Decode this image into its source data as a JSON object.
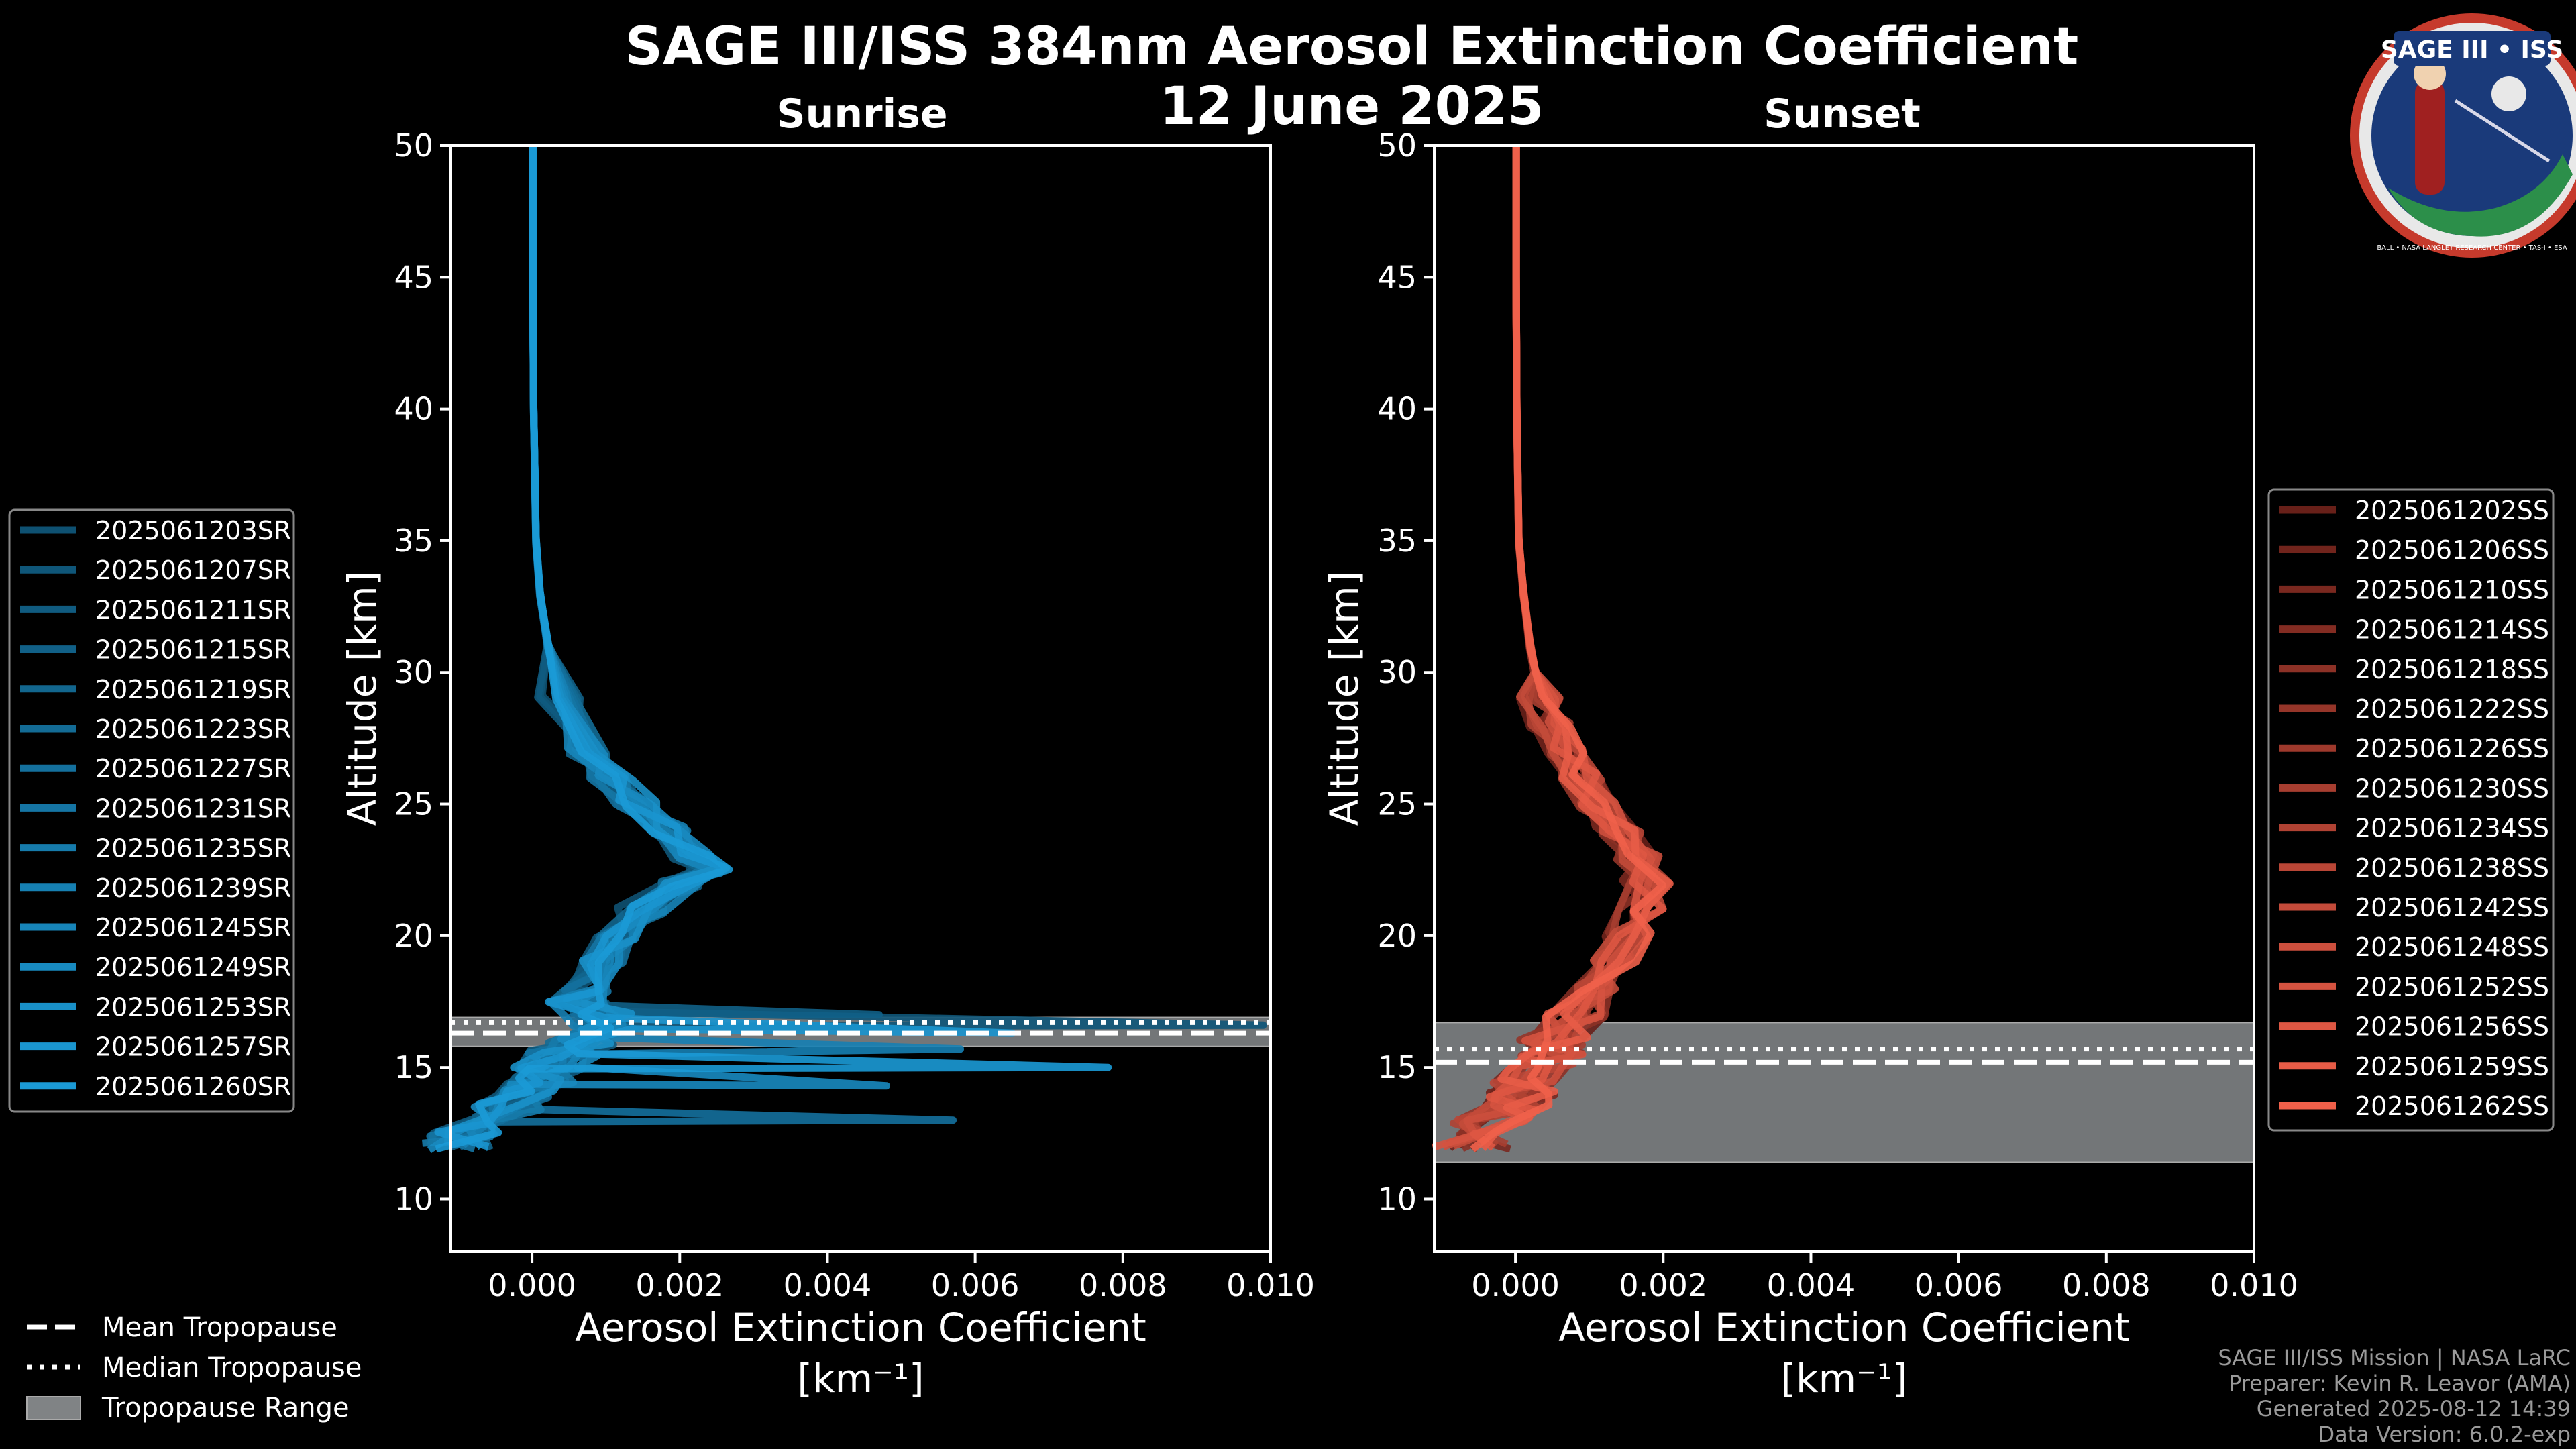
{
  "title": "SAGE III/ISS 384nm Aerosol Extinction Coefficient",
  "date": "12 June 2025",
  "logo": {
    "name": "SAGE III • ISS",
    "ring_text": "BALL • NASA LANGLEY RESEARCH CENTER • TAS-I • ESA"
  },
  "footer": {
    "mission": "SAGE III/ISS Mission | NASA LaRC",
    "preparer": "Preparer: Kevin R. Leavor (AMA)",
    "generated": "Generated 2025-08-12 14:39",
    "version": "Data Version: 6.0.2-exp"
  },
  "tropopause_legend": [
    {
      "label": "Mean Tropopause",
      "style": "dashed"
    },
    {
      "label": "Median Tropopause",
      "style": "dotted"
    },
    {
      "label": "Tropopause Range",
      "style": "patch"
    }
  ],
  "chart_data": [
    {
      "id": "sunrise",
      "type": "line",
      "title": "Sunrise",
      "xlabel": "Aerosol Extinction Coefficient",
      "xunits": "[km⁻¹]",
      "ylabel": "Altitude [km]",
      "xlim": [
        -0.0011,
        0.01
      ],
      "ylim": [
        8,
        50
      ],
      "xticks": [
        0.0,
        0.002,
        0.004,
        0.006,
        0.008,
        0.01
      ],
      "xtick_labels": [
        "0.000",
        "0.002",
        "0.004",
        "0.006",
        "0.008",
        "0.010"
      ],
      "yticks": [
        10,
        15,
        20,
        25,
        30,
        35,
        40,
        45,
        50
      ],
      "ytick_labels": [
        "10",
        "15",
        "20",
        "25",
        "30",
        "35",
        "40",
        "45",
        "50"
      ],
      "color_dark": "#0a3850",
      "color_light": "#1b9ad6",
      "tropopause": {
        "mean": 16.3,
        "median": 16.7,
        "min": 15.8,
        "max": 16.9
      },
      "series_names": [
        "2025061203SR",
        "2025061207SR",
        "2025061211SR",
        "2025061215SR",
        "2025061219SR",
        "2025061223SR",
        "2025061227SR",
        "2025061231SR",
        "2025061235SR",
        "2025061239SR",
        "2025061245SR",
        "2025061249SR",
        "2025061253SR",
        "2025061257SR",
        "2025061260SR"
      ],
      "base_profile": {
        "altitude": [
          50,
          45,
          40,
          35,
          33,
          31,
          29,
          27,
          26,
          25,
          24,
          23,
          22.5,
          22,
          21,
          20,
          19,
          18,
          17.5,
          17,
          16.5,
          16,
          15.5,
          15,
          14.5,
          14,
          13.5,
          13,
          12.5,
          12
        ],
        "extinction": [
          1e-05,
          1e-05,
          2e-05,
          5e-05,
          0.0001,
          0.0002,
          0.00035,
          0.0007,
          0.001,
          0.0013,
          0.0017,
          0.002,
          0.0022,
          0.0019,
          0.0014,
          0.0011,
          0.0009,
          0.0007,
          0.0006,
          0.0008,
          0.0009,
          0.0006,
          0.0004,
          0.0002,
          0.0001,
          0.0,
          -0.0003,
          -0.0005,
          -0.0007,
          -0.0008
        ]
      },
      "highlights": [
        {
          "series": 3,
          "altitude": 17.0,
          "extinction": 0.0047
        },
        {
          "series": 13,
          "altitude": 16.3,
          "extinction": 0.0065
        },
        {
          "series": 9,
          "altitude": 15.7,
          "extinction": 0.0058
        },
        {
          "series": 14,
          "altitude": 15.0,
          "extinction": 0.0078
        },
        {
          "series": 6,
          "altitude": 13.0,
          "extinction": 0.0057
        },
        {
          "series": 11,
          "altitude": 14.3,
          "extinction": 0.0048
        },
        {
          "series": 1,
          "altitude": 16.6,
          "extinction": 0.0099
        }
      ]
    },
    {
      "id": "sunset",
      "type": "line",
      "title": "Sunset",
      "xlabel": "Aerosol Extinction Coefficient",
      "xunits": "[km⁻¹]",
      "ylabel": "Altitude [km]",
      "xlim": [
        -0.0011,
        0.01
      ],
      "ylim": [
        8,
        50
      ],
      "xticks": [
        0.0,
        0.002,
        0.004,
        0.006,
        0.008,
        0.01
      ],
      "xtick_labels": [
        "0.000",
        "0.002",
        "0.004",
        "0.006",
        "0.008",
        "0.010"
      ],
      "yticks": [
        10,
        15,
        20,
        25,
        30,
        35,
        40,
        45,
        50
      ],
      "ytick_labels": [
        "10",
        "15",
        "20",
        "25",
        "30",
        "35",
        "40",
        "45",
        "50"
      ],
      "color_dark": "#3a0a08",
      "color_light": "#f0604a",
      "tropopause": {
        "mean": 15.2,
        "median": 15.7,
        "min": 11.4,
        "max": 16.7
      },
      "series_names": [
        "2025061202SS",
        "2025061206SS",
        "2025061210SS",
        "2025061214SS",
        "2025061218SS",
        "2025061222SS",
        "2025061226SS",
        "2025061230SS",
        "2025061234SS",
        "2025061238SS",
        "2025061242SS",
        "2025061248SS",
        "2025061252SS",
        "2025061256SS",
        "2025061259SS",
        "2025061262SS"
      ],
      "base_profile": {
        "altitude": [
          50,
          45,
          40,
          35,
          33,
          31,
          30,
          29,
          28,
          27,
          26,
          25,
          24,
          23,
          22,
          21,
          20,
          19,
          18,
          17,
          16,
          15.5,
          15,
          14.5,
          14,
          13.5,
          13,
          12.5,
          12
        ],
        "extinction": [
          1e-05,
          1e-05,
          2e-05,
          5e-05,
          0.00012,
          0.00022,
          0.0003,
          0.0004,
          0.0005,
          0.0007,
          0.001,
          0.0013,
          0.0016,
          0.0019,
          0.002,
          0.0019,
          0.0017,
          0.0015,
          0.0012,
          0.0009,
          0.0006,
          0.0005,
          0.0004,
          0.0002,
          0.0001,
          0.0,
          -0.0002,
          -0.0004,
          -0.0005
        ]
      },
      "highlights": []
    }
  ]
}
